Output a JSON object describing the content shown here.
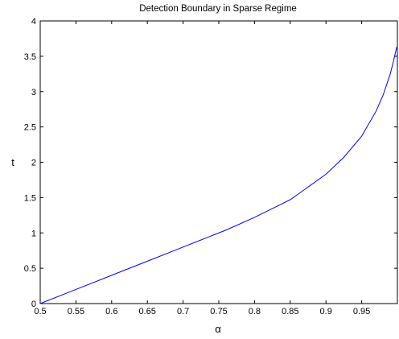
{
  "chart_data": {
    "type": "line",
    "title": "Detection Boundary in Sparse Regime",
    "xlabel": "α",
    "ylabel": "t",
    "xlim": [
      0.5,
      1.0
    ],
    "ylim": [
      0,
      4
    ],
    "grid": false,
    "legend": "none",
    "x_ticks": [
      "0.5",
      "0.55",
      "0.6",
      "0.65",
      "0.7",
      "0.75",
      "0.8",
      "0.85",
      "0.9",
      "0.95"
    ],
    "y_ticks": [
      "0",
      "0.5",
      "1",
      "1.5",
      "2",
      "2.5",
      "3",
      "3.5",
      "4"
    ],
    "line_color": "#0000ff",
    "series": [
      {
        "x": [
          0.5,
          0.55,
          0.6,
          0.65,
          0.7,
          0.75,
          0.76,
          0.8,
          0.85,
          0.9,
          0.925,
          0.95,
          0.97,
          0.98,
          0.99,
          0.995,
          0.999
        ],
        "values": [
          0.0,
          0.2,
          0.4,
          0.6,
          0.8,
          1.0,
          1.04,
          1.22,
          1.47,
          1.83,
          2.07,
          2.37,
          2.72,
          2.95,
          3.25,
          3.45,
          3.63
        ]
      }
    ]
  }
}
